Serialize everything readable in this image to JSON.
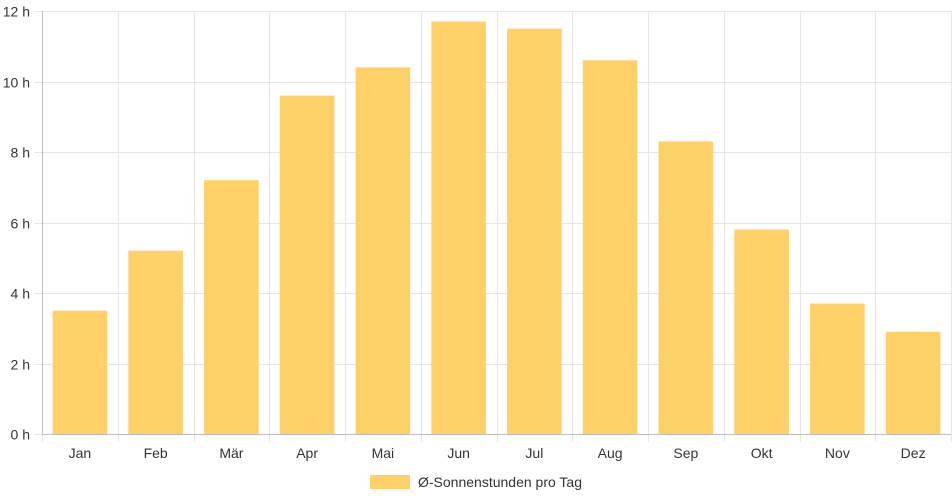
{
  "colors": {
    "bar": "#fdd068",
    "grid": "#e6e6e6",
    "axis": "#bdbdbd",
    "text": "#333333"
  },
  "chart_data": {
    "type": "bar",
    "categories": [
      "Jan",
      "Feb",
      "Mär",
      "Apr",
      "Mai",
      "Jun",
      "Jul",
      "Aug",
      "Sep",
      "Okt",
      "Nov",
      "Dez"
    ],
    "series": [
      {
        "name": "Ø-Sonnenstunden pro Tag",
        "values": [
          3.5,
          5.2,
          7.2,
          9.6,
          10.4,
          11.7,
          11.5,
          10.6,
          8.3,
          5.8,
          3.7,
          2.9
        ]
      }
    ],
    "y_ticks": [
      0,
      2,
      4,
      6,
      8,
      10,
      12
    ],
    "y_tick_suffix": " h",
    "ylim": [
      0,
      12
    ],
    "grid": true,
    "legend": "bottom",
    "title": "",
    "xlabel": "",
    "ylabel": ""
  }
}
